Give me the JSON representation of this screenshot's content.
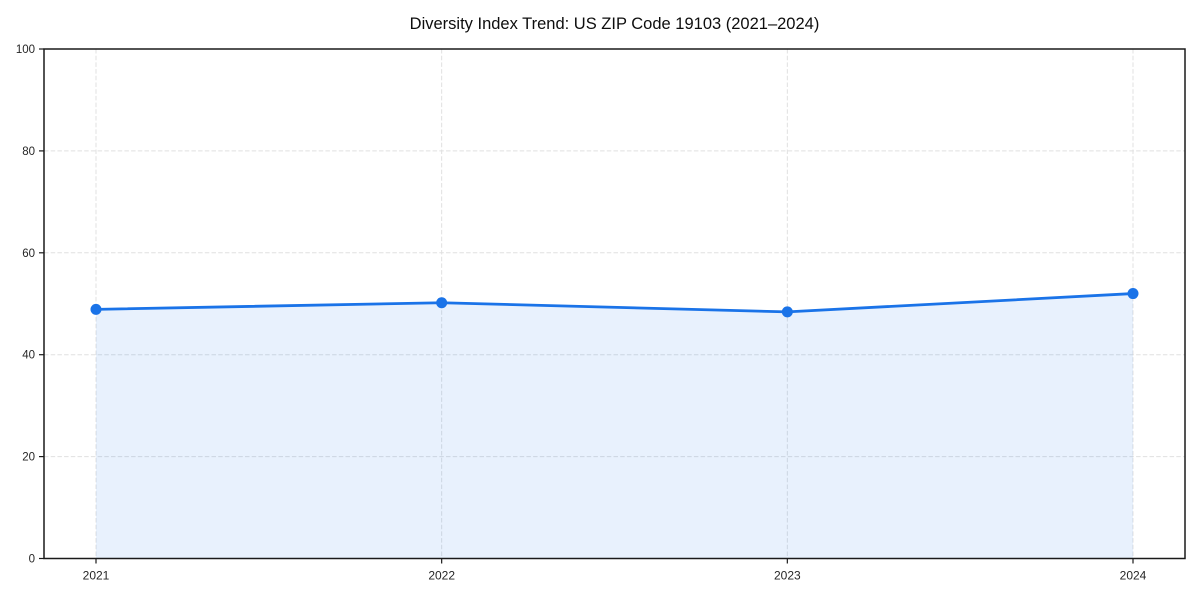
{
  "chart_data": {
    "type": "area",
    "title": "Diversity Index Trend: US ZIP Code 19103 (2021–2024)",
    "categories": [
      "2021",
      "2022",
      "2023",
      "2024"
    ],
    "series": [
      {
        "name": "Diversity Index",
        "values": [
          48.9,
          50.2,
          48.4,
          52.0
        ]
      }
    ],
    "xlabel": "",
    "ylabel": "",
    "ylim": [
      0,
      100
    ],
    "yticks": [
      0,
      20,
      40,
      60,
      80,
      100
    ],
    "grid": "dashed",
    "legend": "none",
    "markers": true,
    "colors": {
      "line": "#1a73e8",
      "marker": "#1a73e8",
      "area_opacity": 0.1,
      "grid": "#e0e0e0",
      "axis": "#1a1a1a",
      "tick_label": "#262626",
      "background": "#ffffff"
    }
  }
}
